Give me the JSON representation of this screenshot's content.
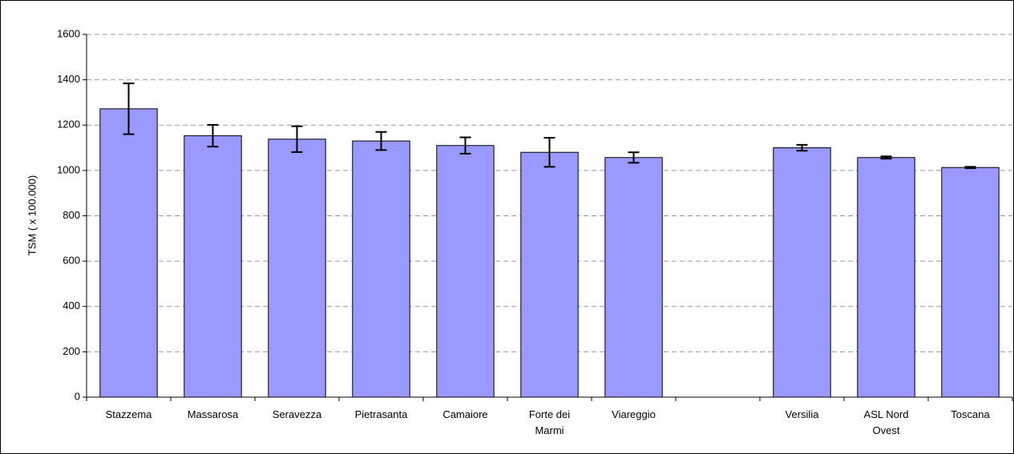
{
  "chart_data": {
    "type": "bar",
    "y_label": "TSM ( x 100.000)",
    "categories": [
      "Stazzema",
      "Massarosa",
      "Seravezza",
      "Pietrasanta",
      "Camaiore",
      "Forte dei Marmi",
      "Viareggio",
      null,
      "Versilia",
      "ASL Nord Ovest",
      "Toscana"
    ],
    "values": [
      1272,
      1153,
      1138,
      1130,
      1110,
      1080,
      1057,
      null,
      1100,
      1057,
      1013
    ],
    "errors": [
      112,
      48,
      57,
      40,
      36,
      64,
      23,
      null,
      13,
      5,
      3
    ],
    "color": "#9999ff",
    "ylim": [
      0,
      1600
    ],
    "yticks": [
      0,
      200,
      400,
      600,
      800,
      1000,
      1200,
      1400,
      1600
    ],
    "grid": true
  }
}
